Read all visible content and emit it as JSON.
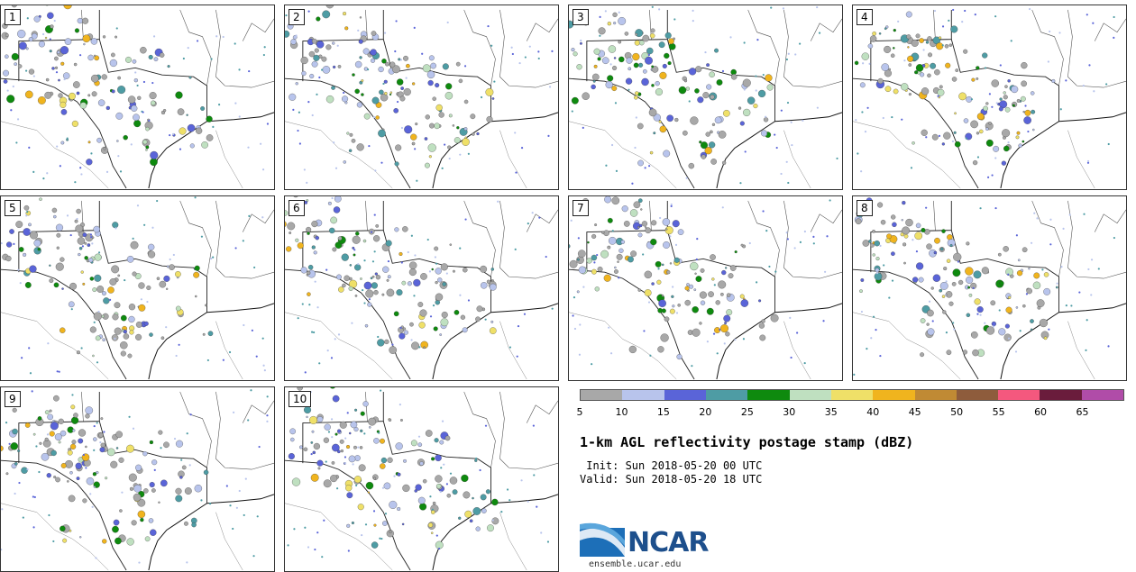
{
  "panels": [
    {
      "label": "1"
    },
    {
      "label": "2"
    },
    {
      "label": "3"
    },
    {
      "label": "4"
    },
    {
      "label": "5"
    },
    {
      "label": "6"
    },
    {
      "label": "7"
    },
    {
      "label": "8"
    },
    {
      "label": "9"
    },
    {
      "label": "10"
    }
  ],
  "colorbar": {
    "colors": [
      "#a8a8a8",
      "#b8c4ec",
      "#5a64d8",
      "#4e9ca4",
      "#0e8a0e",
      "#bfe0c0",
      "#efe068",
      "#f0b41e",
      "#c08a34",
      "#8e5c3c",
      "#f4587e",
      "#6a1c3c",
      "#b04ca8"
    ],
    "labels": [
      "5",
      "10",
      "15",
      "20",
      "25",
      "30",
      "35",
      "40",
      "45",
      "50",
      "55",
      "60",
      "65"
    ]
  },
  "title": "1-km AGL reflectivity postage stamp (dBZ)",
  "init": " Init: Sun 2018-05-20 00 UTC",
  "valid": "Valid: Sun 2018-05-20 18 UTC",
  "logo": {
    "text": "NCAR",
    "url": "ensemble.ucar.edu"
  }
}
